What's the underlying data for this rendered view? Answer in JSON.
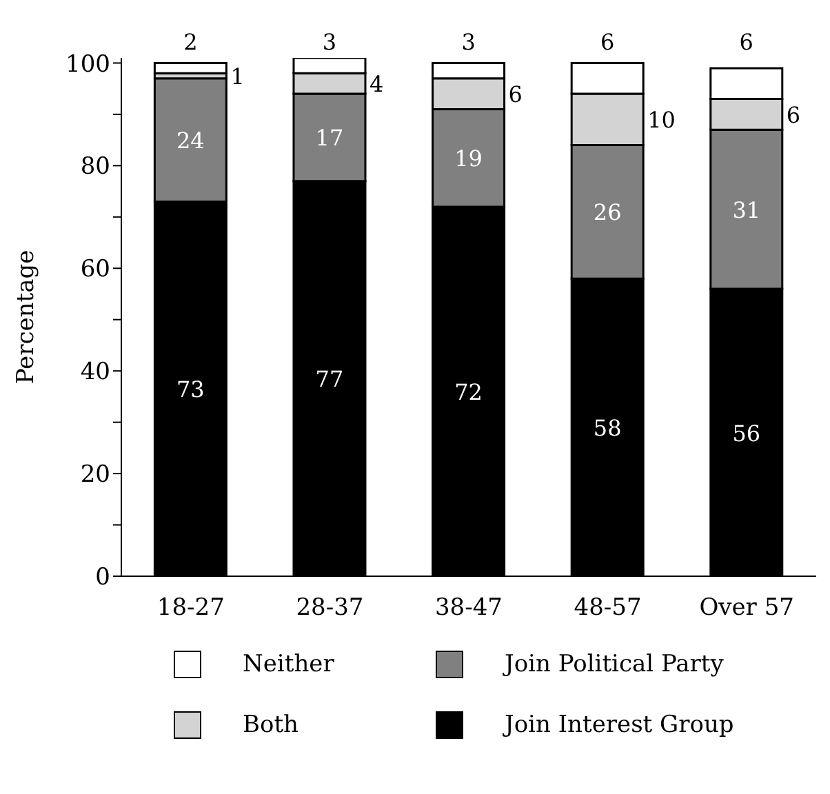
{
  "chart_data": {
    "type": "bar",
    "stacked": true,
    "ylabel": "Percentage",
    "categories": [
      "18-27",
      "28-37",
      "38-47",
      "48-57",
      "Over 57"
    ],
    "series": [
      {
        "name": "Join Interest Group",
        "color": "#000000",
        "values": [
          73,
          77,
          72,
          58,
          56
        ]
      },
      {
        "name": "Join Political Party",
        "color": "#808080",
        "values": [
          24,
          17,
          19,
          26,
          31
        ]
      },
      {
        "name": "Both",
        "color": "#d3d3d3",
        "values": [
          1,
          4,
          6,
          10,
          6
        ]
      },
      {
        "name": "Neither",
        "color": "#ffffff",
        "values": [
          2,
          3,
          3,
          6,
          6
        ]
      }
    ],
    "ylim": [
      0,
      101
    ],
    "yticks": [
      0,
      {
        "value": 10,
        "label": null
      },
      20,
      {
        "value": 30,
        "label": null
      },
      40,
      {
        "value": 50,
        "label": null
      },
      60,
      {
        "value": 70,
        "label": null
      },
      80,
      {
        "value": 90,
        "label": null
      },
      100
    ],
    "data_labels": true,
    "grid": false,
    "legend": "bottom"
  }
}
